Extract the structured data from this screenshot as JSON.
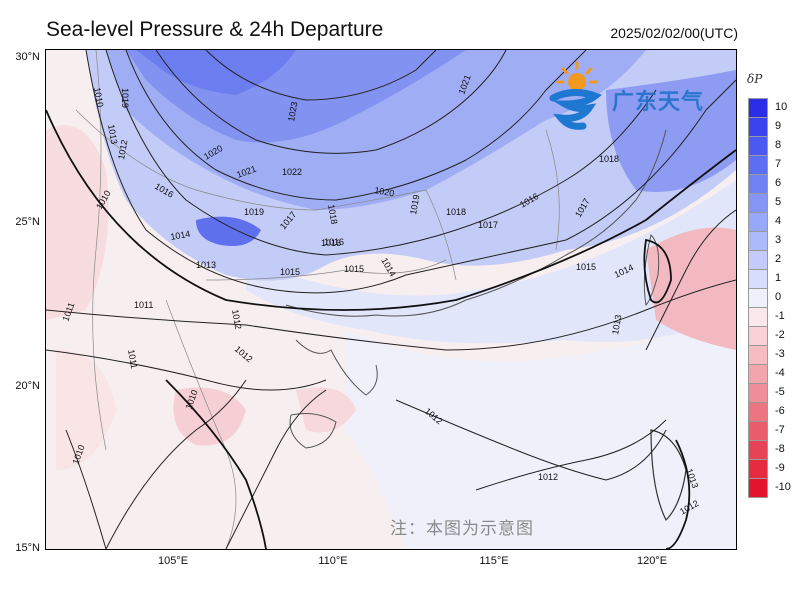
{
  "header": {
    "title": "Sea-level Pressure & 24h Departure",
    "timestamp": "2025/02/02/00(UTC)"
  },
  "map": {
    "lat_labels": [
      "30°N",
      "25°N",
      "20°N",
      "15°N"
    ],
    "lon_labels": [
      "105°E",
      "110°E",
      "115°E",
      "120°E"
    ],
    "isobar_labels": [
      "1010",
      "1019",
      "1013",
      "1012",
      "1016",
      "1010",
      "1014",
      "1013",
      "1019",
      "1017",
      "1016",
      "1015",
      "1015",
      "1020",
      "1021",
      "1022",
      "1018",
      "1023",
      "1021",
      "1018",
      "1020",
      "1019",
      "1016",
      "1017",
      "1018",
      "1016",
      "1017",
      "1015",
      "1014",
      "1013",
      "1014",
      "1012",
      "1011",
      "1011",
      "1012",
      "1011",
      "1010",
      "1010",
      "1012",
      "1012",
      "1013",
      "1012"
    ]
  },
  "colorbar": {
    "title": "δP",
    "ticks": [
      "10",
      "9",
      "8",
      "7",
      "6",
      "5",
      "4",
      "3",
      "2",
      "1",
      "0",
      "-1",
      "-2",
      "-3",
      "-4",
      "-5",
      "-6",
      "-7",
      "-8",
      "-9",
      "-10"
    ],
    "colors": [
      "#2a2ee6",
      "#3a44ee",
      "#4a5af0",
      "#5c6ef2",
      "#6f82f4",
      "#8495f6",
      "#98a8f8",
      "#adbaf9",
      "#c2cbfb",
      "#d7ddfc",
      "#eef0fb",
      "#fbe8ea",
      "#f8d2d6",
      "#f5bcc2",
      "#f2a5ad",
      "#ef8e98",
      "#ec7582",
      "#e95c6c",
      "#e64356",
      "#e42b40",
      "#e3152c"
    ]
  },
  "logo": {
    "text": "广东天气",
    "icon": "sun-wave-logo-icon"
  },
  "note": "注：本图为示意图"
}
